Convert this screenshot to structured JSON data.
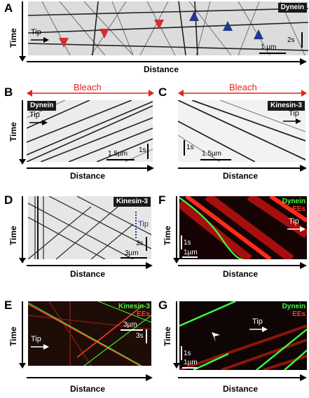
{
  "panels": {
    "a": {
      "letter": "A",
      "label": "Dynein",
      "tip": "Tip",
      "scale_x": "1 µm",
      "scale_t": "2s",
      "xaxis": "Distance",
      "yaxis": "Time"
    },
    "b": {
      "letter": "B",
      "bleach": "Bleach",
      "label": "Dynein",
      "tip": "Tip",
      "scale_x": "1.5µm",
      "scale_t": "1s",
      "xaxis": "Distance",
      "yaxis": "Time"
    },
    "c": {
      "letter": "C",
      "bleach": "Bleach",
      "label": "Kinesin-3",
      "tip": "Tip",
      "scale_x": "1.5µm",
      "scale_t": "1s",
      "xaxis": "Distance"
    },
    "d": {
      "letter": "D",
      "label": "Kinesin-3",
      "tip": "Tip",
      "scale_x": "3µm",
      "scale_t": "3s",
      "xaxis": "Distance",
      "yaxis": "Time"
    },
    "e": {
      "letter": "E",
      "label1": "Kinesin-3",
      "label2": "EEs",
      "tip": "Tip",
      "scale_x": "3µm",
      "scale_t": "3s",
      "xaxis": "Distance",
      "yaxis": "Time"
    },
    "f": {
      "letter": "F",
      "label1": "Dynein",
      "label2": "EEs",
      "tip": "Tip",
      "scale_x": "1µm",
      "scale_t": "1s",
      "xaxis": "Distance",
      "yaxis": "Time"
    },
    "g": {
      "letter": "G",
      "label1": "Dynein",
      "label2": "EEs",
      "tip": "Tip",
      "scale_x": "1µm",
      "scale_t": "1s",
      "xaxis": "Distance",
      "yaxis": "Time"
    }
  },
  "colors": {
    "red_arrow": "#d32f2f",
    "blue_arrow": "#1e3a8a",
    "green": "#3cff3c",
    "red": "#ff2020",
    "bleach": "#e0241f",
    "tip_line": "#1e3a8a"
  }
}
